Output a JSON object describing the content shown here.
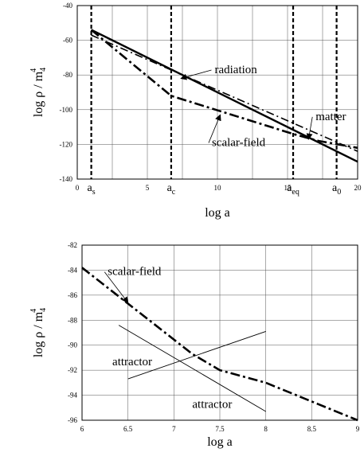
{
  "chart_data": [
    {
      "type": "line",
      "title": "",
      "xlabel": "log a",
      "ylabel": "log ρ / m",
      "ylabel_sub": "4",
      "ylabel_sup": "4",
      "xlim": [
        0,
        20
      ],
      "ylim": [
        -140,
        -40
      ],
      "grid": true,
      "x_ticks": [
        0,
        5,
        10,
        15,
        20
      ],
      "y_ticks": [
        -140,
        -120,
        -100,
        -80,
        -60,
        -40
      ],
      "vlines": [
        {
          "x": 1,
          "base": "a",
          "sub": "s"
        },
        {
          "x": 6.7,
          "base": "a",
          "sub": "c"
        },
        {
          "x": 15.4,
          "base": "a",
          "sub": "eq"
        },
        {
          "x": 18.5,
          "base": "a",
          "sub": "0"
        }
      ],
      "series": [
        {
          "name": "radiation",
          "style": "solid",
          "x": [
            1,
            20
          ],
          "y": [
            -54,
            -130
          ]
        },
        {
          "name": "matter",
          "style": "dashdot-light",
          "x": [
            1,
            20
          ],
          "y": [
            -57,
            -124
          ]
        },
        {
          "name": "scalar-field",
          "style": "dashdot",
          "x": [
            1,
            6.7,
            15.4,
            17.2,
            20
          ],
          "y": [
            -54,
            -92,
            -114,
            -118,
            -122
          ]
        }
      ],
      "annotations": [
        {
          "text": "radiation",
          "x": 9.8,
          "y": -79,
          "arrow_to": [
            7.4,
            -82
          ]
        },
        {
          "text": "matter",
          "x": 17.0,
          "y": -106,
          "arrow_to": [
            16.5,
            -117
          ]
        },
        {
          "text": "scalar-field",
          "x": 9.6,
          "y": -121,
          "arrow_to": [
            10.2,
            -103
          ]
        }
      ]
    },
    {
      "type": "line",
      "title": "",
      "xlabel": "log a",
      "ylabel": "log ρ / m",
      "ylabel_sub": "4",
      "ylabel_sup": "4",
      "xlim": [
        6,
        9
      ],
      "ylim": [
        -96,
        -82
      ],
      "grid": true,
      "x_ticks": [
        6,
        6.5,
        7,
        7.5,
        8,
        8.5,
        9
      ],
      "x_tick_labels": [
        "6",
        "6.5",
        "7",
        "7.5",
        "8",
        "8.5",
        "9"
      ],
      "y_ticks": [
        -96,
        -94,
        -92,
        -90,
        -88,
        -86,
        -84,
        -82
      ],
      "series": [
        {
          "name": "scalar-field",
          "style": "dashdot",
          "x": [
            6,
            7.2,
            7.5,
            8.0,
            9
          ],
          "y": [
            -83.8,
            -90.7,
            -92.0,
            -93.0,
            -96.0
          ]
        },
        {
          "name": "attractor",
          "style": "thin",
          "x": [
            6.4,
            8.0
          ],
          "y": [
            -88.4,
            -95.3
          ]
        },
        {
          "name": "attractor",
          "style": "thin",
          "x": [
            6.5,
            8.0
          ],
          "y": [
            -92.7,
            -88.9
          ]
        }
      ],
      "annotations": [
        {
          "text": "scalar-field",
          "x": 6.28,
          "y": -84.4,
          "arrow_to": [
            6.5,
            -86.6
          ]
        },
        {
          "text": "attractor",
          "x": 6.33,
          "y": -91.6
        },
        {
          "text": "attractor",
          "x": 7.2,
          "y": -95.0
        }
      ]
    }
  ]
}
